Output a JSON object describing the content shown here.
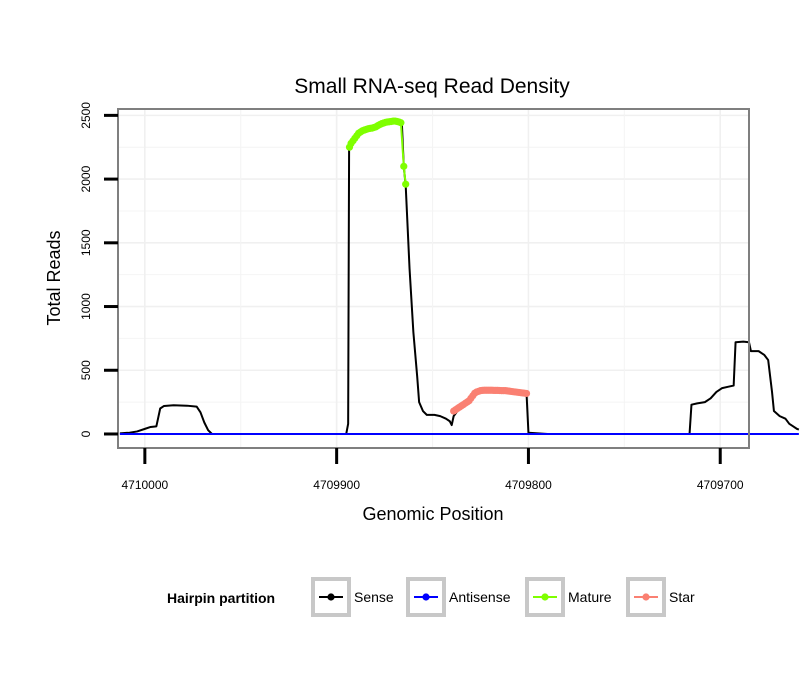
{
  "chart_data": {
    "type": "line",
    "title": "Small RNA-seq Read Density",
    "xlabel": "Genomic Position",
    "ylabel": "Total Reads",
    "xlim": [
      4710014,
      4709685
    ],
    "ylim": [
      -110,
      2550
    ],
    "x_reversed": true,
    "x_ticks": [
      4710000,
      4709900,
      4709800,
      4709700
    ],
    "x_tick_labels": [
      "4710000",
      "4709900",
      "4709800",
      "4709700"
    ],
    "y_ticks": [
      0,
      500,
      1000,
      1500,
      2000,
      2500
    ],
    "y_tick_labels": [
      "0",
      "500",
      "1000",
      "1500",
      "2000",
      "2500"
    ],
    "legend": {
      "title": "Hairpin partition",
      "position": "bottom",
      "entries": [
        {
          "label": "Sense",
          "color": "#000000"
        },
        {
          "label": "Antisense",
          "color": "#0000ff"
        },
        {
          "label": "Mature",
          "color": "#7fff00"
        },
        {
          "label": "Star",
          "color": "#fa8072"
        }
      ]
    },
    "series": [
      {
        "name": "Sense",
        "color": "#000000",
        "points": [
          [
            4710013,
            5
          ],
          [
            4710008,
            10
          ],
          [
            4710004,
            20
          ],
          [
            4710000,
            40
          ],
          [
            4709997,
            55
          ],
          [
            4709994,
            60
          ],
          [
            4709993,
            130
          ],
          [
            4709992,
            200
          ],
          [
            4709990,
            220
          ],
          [
            4709985,
            225
          ],
          [
            4709978,
            222
          ],
          [
            4709973,
            215
          ],
          [
            4709971,
            170
          ],
          [
            4709969,
            90
          ],
          [
            4709967,
            30
          ],
          [
            4709965,
            0
          ],
          [
            4709940,
            0
          ],
          [
            4709900,
            0
          ],
          [
            4709895,
            0
          ],
          [
            4709894,
            80
          ],
          [
            4709893.5,
            2270
          ],
          [
            4709892,
            2310
          ],
          [
            4709890,
            2350
          ],
          [
            4709888,
            2380
          ],
          [
            4709884,
            2395
          ],
          [
            4709880,
            2400
          ],
          [
            4709877,
            2420
          ],
          [
            4709874,
            2440
          ],
          [
            4709870,
            2450
          ],
          [
            4709868,
            2445
          ],
          [
            4709866,
            2440
          ],
          [
            4709865,
            2100
          ],
          [
            4709864,
            1950
          ],
          [
            4709862,
            1300
          ],
          [
            4709860,
            800
          ],
          [
            4709858,
            450
          ],
          [
            4709857,
            250
          ],
          [
            4709855,
            180
          ],
          [
            4709853,
            150
          ],
          [
            4709849,
            150
          ],
          [
            4709846,
            140
          ],
          [
            4709843,
            120
          ],
          [
            4709841,
            100
          ],
          [
            4709840,
            70
          ],
          [
            4709839,
            140
          ],
          [
            4709837,
            180
          ],
          [
            4709834,
            210
          ],
          [
            4709831,
            240
          ],
          [
            4709829,
            290
          ],
          [
            4709826,
            330
          ],
          [
            4709820,
            340
          ],
          [
            4709812,
            340
          ],
          [
            4709806,
            330
          ],
          [
            4709801,
            320
          ],
          [
            4709800,
            10
          ],
          [
            4709795,
            5
          ],
          [
            4709790,
            0
          ],
          [
            4709740,
            0
          ],
          [
            4709716,
            0
          ],
          [
            4709715,
            230
          ],
          [
            4709712,
            240
          ],
          [
            4709708,
            250
          ],
          [
            4709705,
            280
          ],
          [
            4709702,
            330
          ],
          [
            4709699,
            360
          ],
          [
            4709696,
            370
          ],
          [
            4709693,
            380
          ],
          [
            4709692,
            720
          ],
          [
            4709688,
            725
          ],
          [
            4709685,
            720
          ],
          [
            4709684,
            650
          ],
          [
            4709680,
            650
          ],
          [
            4709677,
            620
          ],
          [
            4709675,
            580
          ],
          [
            4709673,
            330
          ],
          [
            4709672,
            180
          ],
          [
            4709669,
            140
          ],
          [
            4709666,
            120
          ],
          [
            4709664,
            80
          ],
          [
            4709662,
            60
          ],
          [
            4709660,
            40
          ],
          [
            4709659,
            35
          ]
        ]
      },
      {
        "name": "Antisense",
        "color": "#0000ff",
        "points": [
          [
            4710013,
            0
          ],
          [
            4709659,
            0
          ]
        ]
      },
      {
        "name": "Mature",
        "color": "#7fff00",
        "points": [
          [
            4709893.3,
            2250
          ],
          [
            4709892.5,
            2280
          ],
          [
            4709891.5,
            2300
          ],
          [
            4709890.5,
            2320
          ],
          [
            4709889.5,
            2340
          ],
          [
            4709888.5,
            2360
          ],
          [
            4709887.5,
            2370
          ],
          [
            4709886.5,
            2380
          ],
          [
            4709885.5,
            2385
          ],
          [
            4709884.5,
            2390
          ],
          [
            4709883.5,
            2395
          ],
          [
            4709882.5,
            2398
          ],
          [
            4709881.5,
            2400
          ],
          [
            4709880.5,
            2405
          ],
          [
            4709879.5,
            2410
          ],
          [
            4709878.5,
            2420
          ],
          [
            4709877.5,
            2428
          ],
          [
            4709876.5,
            2435
          ],
          [
            4709875.5,
            2440
          ],
          [
            4709874.5,
            2445
          ],
          [
            4709873.5,
            2448
          ],
          [
            4709872.5,
            2450
          ],
          [
            4709871.5,
            2452
          ],
          [
            4709870.5,
            2455
          ],
          [
            4709869.5,
            2455
          ],
          [
            4709868.5,
            2452
          ],
          [
            4709867.5,
            2448
          ],
          [
            4709866.5,
            2442
          ],
          [
            4709865,
            2100
          ],
          [
            4709864,
            1960
          ]
        ]
      },
      {
        "name": "Star",
        "color": "#fa8072",
        "points": [
          [
            4709839,
            180
          ],
          [
            4709838,
            190
          ],
          [
            4709837,
            200
          ],
          [
            4709836,
            210
          ],
          [
            4709835,
            220
          ],
          [
            4709834,
            230
          ],
          [
            4709833,
            240
          ],
          [
            4709832,
            250
          ],
          [
            4709831,
            260
          ],
          [
            4709830,
            280
          ],
          [
            4709829,
            300
          ],
          [
            4709828,
            320
          ],
          [
            4709827,
            330
          ],
          [
            4709826,
            335
          ],
          [
            4709825,
            340
          ],
          [
            4709824,
            342
          ],
          [
            4709823,
            343
          ],
          [
            4709822,
            343
          ],
          [
            4709821,
            343
          ],
          [
            4709820,
            343
          ],
          [
            4709819,
            343
          ],
          [
            4709818,
            342
          ],
          [
            4709817,
            342
          ],
          [
            4709816,
            342
          ],
          [
            4709815,
            341
          ],
          [
            4709814,
            340
          ],
          [
            4709813,
            340
          ],
          [
            4709812,
            340
          ],
          [
            4709811,
            338
          ],
          [
            4709810,
            336
          ],
          [
            4709809,
            334
          ],
          [
            4709808,
            332
          ],
          [
            4709807,
            330
          ],
          [
            4709806,
            328
          ],
          [
            4709805,
            326
          ],
          [
            4709804,
            324
          ],
          [
            4709803,
            322
          ],
          [
            4709802,
            320
          ],
          [
            4709801,
            318
          ]
        ]
      }
    ]
  }
}
